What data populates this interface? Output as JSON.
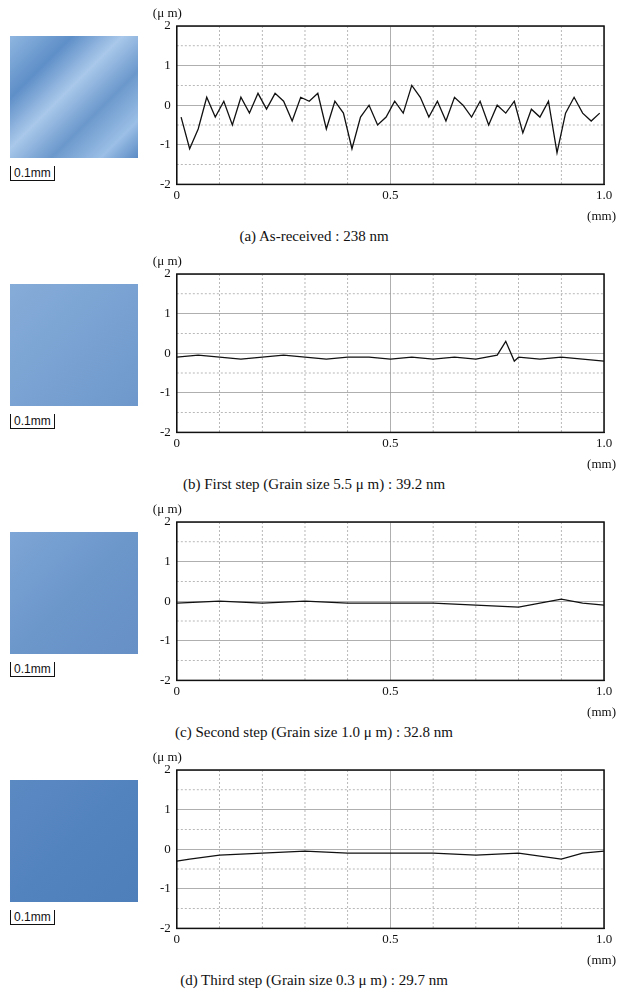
{
  "chart_data": [
    {
      "type": "line",
      "title": "(a)  As-received : 238 nm",
      "xlabel": "(mm)",
      "ylabel": "(μ m)",
      "annotations": [
        "0.1mm"
      ],
      "color": "#111111",
      "grid": true,
      "xlim": [
        0,
        1
      ],
      "xticks": [
        0,
        0.5,
        {
          "value": 1,
          "label": "1.0"
        }
      ],
      "ylim": [
        -2,
        2
      ],
      "yticks": [
        -2,
        -1,
        0,
        1,
        2
      ],
      "x": [
        0.01,
        0.03,
        0.05,
        0.07,
        0.09,
        0.11,
        0.13,
        0.15,
        0.17,
        0.19,
        0.21,
        0.23,
        0.25,
        0.27,
        0.29,
        0.31,
        0.33,
        0.35,
        0.37,
        0.39,
        0.41,
        0.43,
        0.45,
        0.47,
        0.49,
        0.51,
        0.53,
        0.55,
        0.57,
        0.59,
        0.61,
        0.63,
        0.65,
        0.67,
        0.69,
        0.71,
        0.73,
        0.75,
        0.77,
        0.79,
        0.81,
        0.83,
        0.85,
        0.87,
        0.89,
        0.91,
        0.93,
        0.95,
        0.97,
        0.99
      ],
      "values": [
        -0.3,
        -1.1,
        -0.6,
        0.2,
        -0.3,
        0.1,
        -0.5,
        0.2,
        -0.2,
        0.3,
        -0.1,
        0.3,
        0.1,
        -0.4,
        0.2,
        0.1,
        0.3,
        -0.6,
        0.1,
        -0.2,
        -1.1,
        -0.3,
        0.0,
        -0.5,
        -0.3,
        0.1,
        -0.2,
        0.5,
        0.2,
        -0.3,
        0.1,
        -0.4,
        0.2,
        0.0,
        -0.3,
        0.1,
        -0.5,
        0.0,
        -0.2,
        0.1,
        -0.7,
        -0.1,
        -0.3,
        0.1,
        -1.2,
        -0.2,
        0.2,
        -0.2,
        -0.4,
        -0.2
      ]
    },
    {
      "type": "line",
      "title": "(b)  First step (Grain size 5.5 μ m) : 39.2 nm",
      "xlabel": "(mm)",
      "ylabel": "(μ m)",
      "annotations": [
        "0.1mm"
      ],
      "color": "#111111",
      "grid": true,
      "xlim": [
        0,
        1
      ],
      "xticks": [
        0,
        0.5,
        {
          "value": 1,
          "label": "1.0"
        }
      ],
      "ylim": [
        -2,
        2
      ],
      "yticks": [
        -2,
        -1,
        0,
        1,
        2
      ],
      "x": [
        0,
        0.05,
        0.1,
        0.15,
        0.2,
        0.25,
        0.3,
        0.35,
        0.4,
        0.45,
        0.5,
        0.55,
        0.6,
        0.65,
        0.7,
        0.75,
        0.77,
        0.79,
        0.8,
        0.85,
        0.9,
        0.95,
        1
      ],
      "values": [
        -0.1,
        -0.05,
        -0.1,
        -0.15,
        -0.1,
        -0.05,
        -0.1,
        -0.15,
        -0.1,
        -0.1,
        -0.15,
        -0.1,
        -0.15,
        -0.1,
        -0.15,
        -0.05,
        0.3,
        -0.2,
        -0.1,
        -0.15,
        -0.1,
        -0.15,
        -0.2
      ]
    },
    {
      "type": "line",
      "title": "(c)  Second step (Grain size 1.0 μ m) : 32.8 nm",
      "xlabel": "(mm)",
      "ylabel": "(μ m)",
      "annotations": [
        "0.1mm"
      ],
      "color": "#111111",
      "grid": true,
      "xlim": [
        0,
        1
      ],
      "xticks": [
        0,
        0.5,
        {
          "value": 1,
          "label": "1.0"
        }
      ],
      "ylim": [
        -2,
        2
      ],
      "yticks": [
        -2,
        -1,
        0,
        1,
        2
      ],
      "x": [
        0,
        0.1,
        0.2,
        0.3,
        0.4,
        0.5,
        0.6,
        0.7,
        0.8,
        0.85,
        0.9,
        0.95,
        1
      ],
      "values": [
        -0.05,
        0,
        -0.05,
        0,
        -0.05,
        -0.05,
        -0.05,
        -0.1,
        -0.15,
        -0.05,
        0.05,
        -0.05,
        -0.1
      ]
    },
    {
      "type": "line",
      "title": "(d)  Third step (Grain size 0.3 μ m) : 29.7 nm",
      "xlabel": "(mm)",
      "ylabel": "(μ m)",
      "annotations": [
        "0.1mm"
      ],
      "color": "#111111",
      "grid": true,
      "xlim": [
        0,
        1
      ],
      "xticks": [
        0,
        0.5,
        {
          "value": 1,
          "label": "1.0"
        }
      ],
      "ylim": [
        -2,
        2
      ],
      "yticks": [
        -2,
        -1,
        0,
        1,
        2
      ],
      "x": [
        0,
        0.03,
        0.1,
        0.2,
        0.3,
        0.4,
        0.5,
        0.6,
        0.7,
        0.8,
        0.9,
        0.95,
        1
      ],
      "values": [
        -0.3,
        -0.25,
        -0.15,
        -0.1,
        -0.05,
        -0.1,
        -0.1,
        -0.1,
        -0.15,
        -0.1,
        -0.25,
        -0.1,
        -0.05
      ]
    }
  ]
}
